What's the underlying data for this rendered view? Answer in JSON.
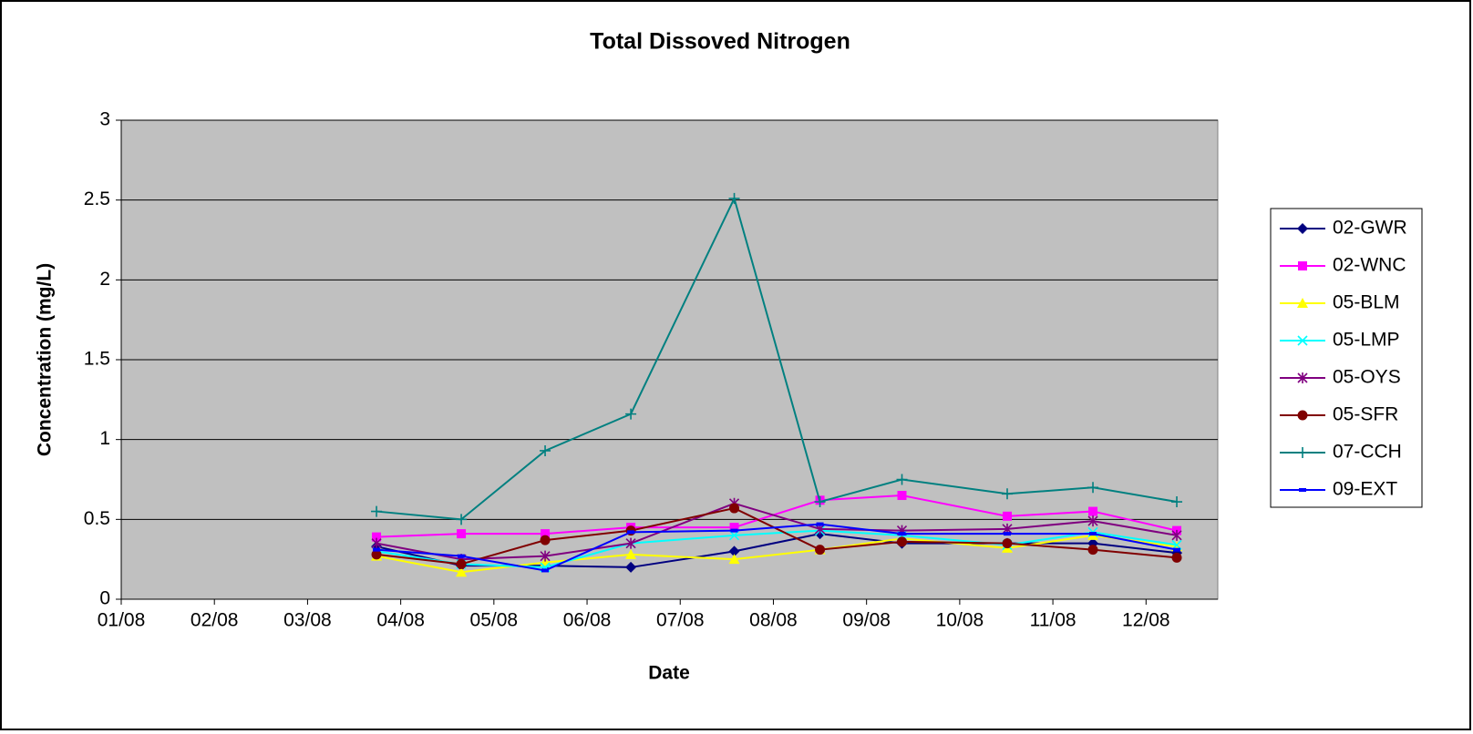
{
  "chart_data": {
    "type": "line",
    "title": "Total Dissoved Nitrogen",
    "x_label": "Date",
    "y_label": "Concentration (mg/L)",
    "x": [
      3.74,
      4.65,
      5.55,
      6.47,
      7.58,
      8.5,
      9.38,
      10.51,
      11.43,
      12.33
    ],
    "xlim": [
      1,
      12.77
    ],
    "xticks": [
      {
        "value": 1,
        "label": "01/08"
      },
      {
        "value": 2,
        "label": "02/08"
      },
      {
        "value": 3,
        "label": "03/08"
      },
      {
        "value": 4,
        "label": "04/08"
      },
      {
        "value": 5,
        "label": "05/08"
      },
      {
        "value": 6,
        "label": "06/08"
      },
      {
        "value": 7,
        "label": "07/08"
      },
      {
        "value": 8,
        "label": "08/08"
      },
      {
        "value": 9,
        "label": "09/08"
      },
      {
        "value": 10,
        "label": "10/08"
      },
      {
        "value": 11,
        "label": "11/08"
      },
      {
        "value": 12,
        "label": "12/08"
      }
    ],
    "ylim": [
      0,
      3
    ],
    "yticks": [
      0,
      0.5,
      1,
      1.5,
      2,
      2.5,
      3
    ],
    "grid": true,
    "legend": "right",
    "series": [
      {
        "name": "02-GWR",
        "color": "#000080",
        "marker": "diamond",
        "values": [
          0.33,
          0.21,
          0.21,
          0.2,
          0.3,
          0.41,
          0.35,
          0.35,
          0.35,
          0.29
        ]
      },
      {
        "name": "02-WNC",
        "color": "#ff00ff",
        "marker": "square",
        "values": [
          0.39,
          0.41,
          0.41,
          0.45,
          0.45,
          0.62,
          0.65,
          0.52,
          0.55,
          0.43
        ]
      },
      {
        "name": "05-BLM",
        "color": "#ffff00",
        "marker": "triangle",
        "values": [
          0.27,
          0.17,
          0.23,
          0.28,
          0.25,
          0.31,
          0.38,
          0.32,
          0.4,
          0.33
        ]
      },
      {
        "name": "05-LMP",
        "color": "#00ffff",
        "marker": "x",
        "values": [
          0.3,
          0.22,
          0.2,
          0.35,
          0.4,
          0.43,
          0.4,
          0.34,
          0.42,
          0.34
        ]
      },
      {
        "name": "05-OYS",
        "color": "#800080",
        "marker": "asterisk",
        "values": [
          0.35,
          0.25,
          0.27,
          0.35,
          0.6,
          0.44,
          0.43,
          0.44,
          0.49,
          0.4
        ]
      },
      {
        "name": "05-SFR",
        "color": "#800000",
        "marker": "circle",
        "values": [
          0.28,
          0.22,
          0.37,
          0.43,
          0.57,
          0.31,
          0.36,
          0.35,
          0.31,
          0.26
        ]
      },
      {
        "name": "07-CCH",
        "color": "#008080",
        "marker": "plus",
        "values": [
          0.55,
          0.5,
          0.93,
          1.16,
          2.51,
          0.61,
          0.75,
          0.66,
          0.7,
          0.61
        ]
      },
      {
        "name": "09-EXT",
        "color": "#0000ff",
        "marker": "dash",
        "values": [
          0.31,
          0.27,
          0.18,
          0.42,
          0.43,
          0.47,
          0.41,
          0.41,
          0.41,
          0.31
        ]
      }
    ]
  }
}
